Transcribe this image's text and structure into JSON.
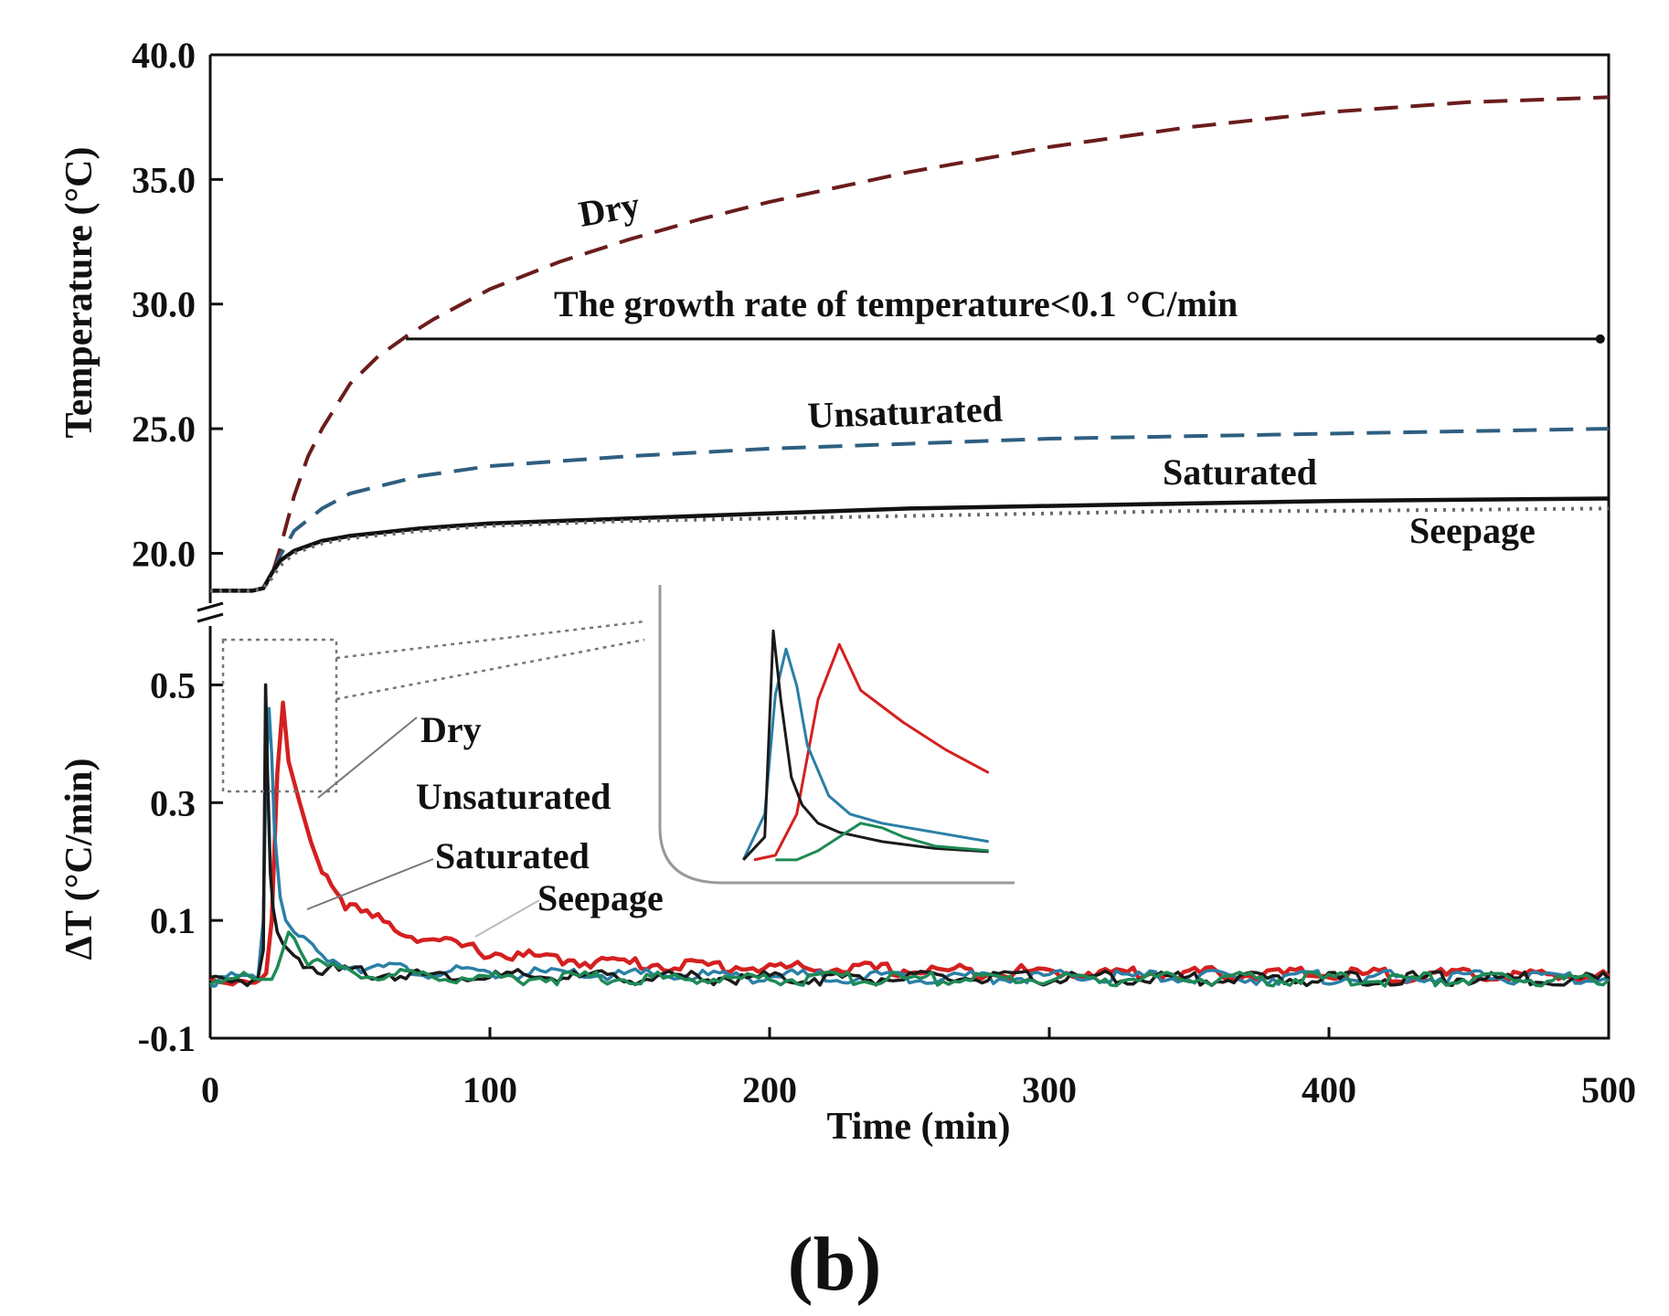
{
  "panel_label": "(b)",
  "chart_data": [
    {
      "type": "line",
      "id": "temperature",
      "xlabel": "Time (min)",
      "ylabel": "Temperature (°C)",
      "xlim": [
        0,
        500
      ],
      "ylim": [
        18.0,
        40.0
      ],
      "xticks": [
        "0",
        "100",
        "200",
        "300",
        "400",
        "500"
      ],
      "xtick_values": [
        0,
        100,
        200,
        300,
        400,
        500
      ],
      "yticks": [
        "20.0",
        "25.0",
        "30.0",
        "35.0",
        "40.0"
      ],
      "ytick_values": [
        20,
        25,
        30,
        35,
        40
      ],
      "annotation": "The growth rate of temperature<0.1 °C/min",
      "threshold_line": {
        "y": 28.6,
        "x": [
          70,
          497
        ]
      },
      "series": [
        {
          "name": "Dry",
          "color": "#6b1c1c",
          "style": "dashed",
          "x": [
            0,
            15,
            19,
            22,
            25,
            30,
            35,
            40,
            50,
            60,
            70,
            80,
            100,
            125,
            150,
            175,
            200,
            225,
            250,
            275,
            300,
            325,
            350,
            375,
            400,
            425,
            450,
            475,
            500
          ],
          "y": [
            18.5,
            18.5,
            18.6,
            19.1,
            20.2,
            22.3,
            23.9,
            25.0,
            26.8,
            27.9,
            28.7,
            29.4,
            30.6,
            31.7,
            32.6,
            33.4,
            34.1,
            34.7,
            35.3,
            35.8,
            36.3,
            36.7,
            37.1,
            37.4,
            37.7,
            37.9,
            38.1,
            38.2,
            38.3
          ]
        },
        {
          "name": "Unsaturated",
          "color": "#2e5f80",
          "style": "dashed",
          "x": [
            0,
            15,
            19,
            22,
            25,
            30,
            40,
            50,
            75,
            100,
            150,
            200,
            250,
            300,
            350,
            400,
            450,
            500
          ],
          "y": [
            18.5,
            18.5,
            18.6,
            19.1,
            19.9,
            20.9,
            21.8,
            22.4,
            23.1,
            23.5,
            23.9,
            24.2,
            24.4,
            24.6,
            24.7,
            24.8,
            24.9,
            25.0
          ]
        },
        {
          "name": "Saturated",
          "color": "#111111",
          "style": "solid",
          "x": [
            0,
            15,
            19,
            22,
            25,
            30,
            40,
            50,
            75,
            100,
            150,
            200,
            250,
            300,
            350,
            400,
            450,
            500
          ],
          "y": [
            18.5,
            18.5,
            18.6,
            19.2,
            19.7,
            20.1,
            20.5,
            20.7,
            21.0,
            21.2,
            21.4,
            21.6,
            21.8,
            21.9,
            22.0,
            22.1,
            22.15,
            22.2
          ]
        },
        {
          "name": "Seepage",
          "color": "#6a6a6a",
          "style": "dotted",
          "x": [
            0,
            15,
            19,
            22,
            25,
            30,
            40,
            50,
            75,
            100,
            150,
            200,
            250,
            300,
            350,
            400,
            450,
            500
          ],
          "y": [
            18.5,
            18.5,
            18.6,
            19.0,
            19.5,
            20.0,
            20.4,
            20.6,
            20.9,
            21.1,
            21.3,
            21.4,
            21.5,
            21.6,
            21.7,
            21.7,
            21.75,
            21.8
          ]
        }
      ]
    },
    {
      "type": "line",
      "id": "rate",
      "xlabel": "Time (min)",
      "ylabel": "ΔT (°C/min)",
      "xlim": [
        0,
        500
      ],
      "ylim": [
        -0.1,
        0.6
      ],
      "xticks": [
        "0",
        "100",
        "200",
        "300",
        "400",
        "500"
      ],
      "xtick_values": [
        0,
        100,
        200,
        300,
        400,
        500
      ],
      "yticks": [
        "-0.1",
        "0.1",
        "0.3",
        "0.5"
      ],
      "ytick_values": [
        -0.1,
        0.1,
        0.3,
        0.5
      ],
      "series": [
        {
          "name": "Dry",
          "color": "#d42020",
          "x": [
            0,
            18,
            20,
            22,
            24,
            26,
            28,
            32,
            36,
            40,
            45,
            50,
            60,
            70,
            80,
            90,
            100,
            120,
            140,
            160,
            200,
            250,
            300,
            350,
            400,
            450,
            500
          ],
          "y": [
            0.0,
            0.0,
            0.01,
            0.1,
            0.35,
            0.47,
            0.37,
            0.3,
            0.24,
            0.19,
            0.15,
            0.12,
            0.1,
            0.08,
            0.065,
            0.055,
            0.045,
            0.035,
            0.03,
            0.025,
            0.02,
            0.015,
            0.012,
            0.01,
            0.008,
            0.006,
            0.005
          ]
        },
        {
          "name": "Unsaturated",
          "color": "#2a7fa6",
          "x": [
            0,
            17,
            19,
            20,
            21,
            22,
            23,
            25,
            27,
            30,
            35,
            40,
            50,
            60,
            80,
            100,
            150,
            200,
            300,
            400,
            500
          ],
          "y": [
            0.0,
            0.0,
            0.1,
            0.36,
            0.46,
            0.38,
            0.25,
            0.14,
            0.1,
            0.08,
            0.06,
            0.04,
            0.025,
            0.02,
            0.012,
            0.01,
            0.007,
            0.005,
            0.004,
            0.003,
            0.003
          ]
        },
        {
          "name": "Saturated",
          "color": "#1a1a1a",
          "x": [
            0,
            17,
            19,
            19.8,
            20.5,
            21.5,
            22.5,
            24,
            26,
            28,
            30,
            35,
            40,
            50,
            60,
            80,
            100,
            150,
            200,
            300,
            400,
            500
          ],
          "y": [
            0.0,
            0.0,
            0.05,
            0.5,
            0.35,
            0.18,
            0.12,
            0.08,
            0.06,
            0.05,
            0.04,
            0.025,
            0.018,
            0.012,
            0.01,
            0.007,
            0.005,
            0.003,
            0.002,
            0.002,
            0.001,
            0.001
          ]
        },
        {
          "name": "Seepage",
          "color": "#1e8a55",
          "x": [
            0,
            20,
            22,
            24,
            26,
            28,
            30,
            32,
            35,
            40,
            50,
            60,
            80,
            100,
            150,
            200,
            300,
            400,
            500
          ],
          "y": [
            0.0,
            0.0,
            0.0,
            0.02,
            0.05,
            0.08,
            0.07,
            0.05,
            0.03,
            0.02,
            0.01,
            0.008,
            0.005,
            0.003,
            0.002,
            0.001,
            0.001,
            0.0,
            0.0
          ]
        }
      ],
      "inset": {
        "description": "zoom of 0-45 min window",
        "xlim": [
          15,
          45
        ],
        "ylim": [
          -0.05,
          0.6
        ]
      }
    }
  ]
}
